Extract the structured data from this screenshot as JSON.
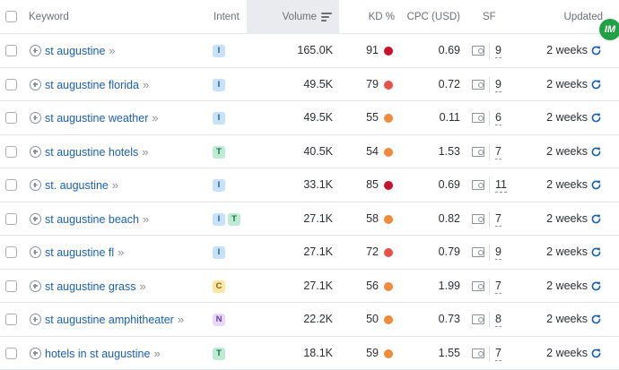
{
  "header": {
    "keyword": "Keyword",
    "intent": "Intent",
    "volume": "Volume",
    "kd": "KD %",
    "cpc": "CPC (USD)",
    "sf": "SF",
    "updated": "Updated"
  },
  "extension_badge": "IM",
  "colors": {
    "kd_very_hard": "#c8102e",
    "kd_hard": "#e8504a",
    "kd_difficult": "#f08a3c",
    "refresh": "#1a5fb4",
    "link": "#1a5fb4"
  },
  "rows": [
    {
      "keyword": "st augustine",
      "intents": [
        "I"
      ],
      "volume": "165.0K",
      "kd": "91",
      "kd_level": "very_hard",
      "cpc": "0.69",
      "sf": "9",
      "updated": "2 weeks"
    },
    {
      "keyword": "st augustine florida",
      "intents": [
        "I"
      ],
      "volume": "49.5K",
      "kd": "79",
      "kd_level": "hard",
      "cpc": "0.72",
      "sf": "9",
      "updated": "2 weeks"
    },
    {
      "keyword": "st augustine weather",
      "intents": [
        "I"
      ],
      "volume": "49.5K",
      "kd": "55",
      "kd_level": "difficult",
      "cpc": "0.11",
      "sf": "6",
      "updated": "2 weeks"
    },
    {
      "keyword": "st augustine hotels",
      "intents": [
        "T"
      ],
      "volume": "40.5K",
      "kd": "54",
      "kd_level": "difficult",
      "cpc": "1.53",
      "sf": "7",
      "updated": "2 weeks"
    },
    {
      "keyword": "st. augustine",
      "intents": [
        "I"
      ],
      "volume": "33.1K",
      "kd": "85",
      "kd_level": "very_hard",
      "cpc": "0.69",
      "sf": "11",
      "updated": "2 weeks"
    },
    {
      "keyword": "st augustine beach",
      "intents": [
        "I",
        "T"
      ],
      "volume": "27.1K",
      "kd": "58",
      "kd_level": "difficult",
      "cpc": "0.82",
      "sf": "7",
      "updated": "2 weeks"
    },
    {
      "keyword": "st augustine fl",
      "intents": [
        "I"
      ],
      "volume": "27.1K",
      "kd": "72",
      "kd_level": "hard",
      "cpc": "0.79",
      "sf": "9",
      "updated": "2 weeks"
    },
    {
      "keyword": "st augustine grass",
      "intents": [
        "C"
      ],
      "volume": "27.1K",
      "kd": "56",
      "kd_level": "difficult",
      "cpc": "1.99",
      "sf": "7",
      "updated": "2 weeks"
    },
    {
      "keyword": "st augustine amphitheater",
      "intents": [
        "N"
      ],
      "volume": "22.2K",
      "kd": "50",
      "kd_level": "difficult",
      "cpc": "0.73",
      "sf": "8",
      "updated": "2 weeks"
    },
    {
      "keyword": "hotels in st augustine",
      "intents": [
        "T"
      ],
      "volume": "18.1K",
      "kd": "59",
      "kd_level": "difficult",
      "cpc": "1.55",
      "sf": "7",
      "updated": "2 weeks"
    }
  ]
}
